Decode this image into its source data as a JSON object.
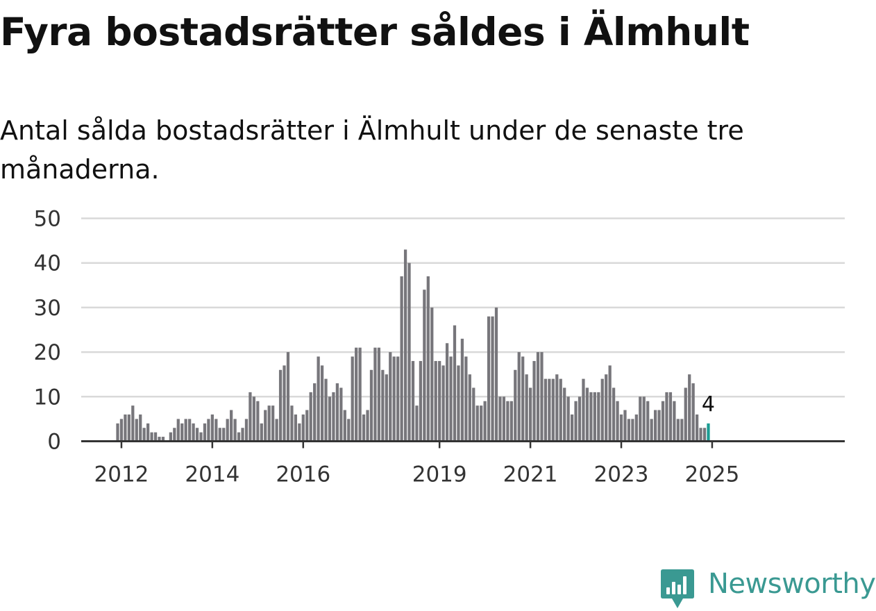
{
  "title": "Fyra bostadsrätter såldes i Älmhult",
  "subtitle": "Antal sålda bostadsrätter i Älmhult under de senaste tre månaderna.",
  "brand": {
    "name": "Newsworthy",
    "color": "#3a9992",
    "icon": "newsworthy-logo-icon"
  },
  "chart_data": {
    "type": "bar",
    "ylim": [
      0,
      50
    ],
    "yticks": [
      0,
      10,
      20,
      30,
      40,
      50
    ],
    "xticks": [
      "2012",
      "2014",
      "2016",
      "2019",
      "2021",
      "2023",
      "2025"
    ],
    "grid": true,
    "bar_color": "#77767b",
    "highlight_color": "#1b9c93",
    "highlight_label": "4",
    "start": "2011-12",
    "end": "2025-01",
    "values": [
      4,
      5,
      6,
      6,
      8,
      5,
      6,
      3,
      4,
      2,
      2,
      1,
      1,
      0,
      2,
      3,
      5,
      4,
      5,
      5,
      4,
      3,
      2,
      4,
      5,
      6,
      5,
      3,
      3,
      5,
      7,
      5,
      2,
      3,
      5,
      11,
      10,
      9,
      4,
      7,
      8,
      8,
      5,
      16,
      17,
      20,
      8,
      6,
      4,
      6,
      7,
      11,
      13,
      19,
      17,
      14,
      10,
      11,
      13,
      12,
      7,
      5,
      19,
      21,
      21,
      6,
      7,
      16,
      21,
      21,
      16,
      15,
      20,
      19,
      19,
      37,
      43,
      40,
      18,
      8,
      18,
      34,
      37,
      30,
      18,
      18,
      17,
      22,
      19,
      26,
      17,
      23,
      19,
      15,
      12,
      8,
      8,
      9,
      28,
      28,
      30,
      10,
      10,
      9,
      9,
      16,
      20,
      19,
      15,
      12,
      18,
      20,
      20,
      14,
      14,
      14,
      15,
      14,
      12,
      10,
      6,
      9,
      10,
      14,
      12,
      11,
      11,
      11,
      14,
      15,
      17,
      12,
      9,
      6,
      7,
      5,
      5,
      6,
      10,
      10,
      9,
      5,
      7,
      7,
      9,
      11,
      11,
      9,
      5,
      5,
      12,
      15,
      13,
      6,
      3,
      3,
      4
    ]
  }
}
